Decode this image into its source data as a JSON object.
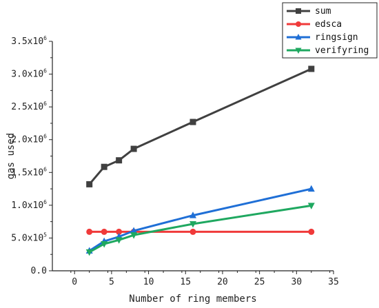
{
  "chart_data": {
    "type": "line",
    "title": "",
    "xlabel": "Number of ring members",
    "ylabel": "gas used",
    "xlim": [
      -3,
      35
    ],
    "ylim": [
      0,
      3500000
    ],
    "x_ticks": [
      {
        "value": 0,
        "label": "0"
      },
      {
        "value": 5,
        "label": "5"
      },
      {
        "value": 10,
        "label": "10"
      },
      {
        "value": 15,
        "label": "15"
      },
      {
        "value": 20,
        "label": "20"
      },
      {
        "value": 25,
        "label": "25"
      },
      {
        "value": 30,
        "label": "30"
      },
      {
        "value": 35,
        "label": "35"
      }
    ],
    "y_ticks": [
      {
        "value": 0,
        "mantissa": "0.0",
        "exp": ""
      },
      {
        "value": 500000,
        "mantissa": "5.0x10",
        "exp": "5"
      },
      {
        "value": 1000000,
        "mantissa": "1.0x10",
        "exp": "6"
      },
      {
        "value": 1500000,
        "mantissa": "1.5x10",
        "exp": "6"
      },
      {
        "value": 2000000,
        "mantissa": "2.0x10",
        "exp": "6"
      },
      {
        "value": 2500000,
        "mantissa": "2.5x10",
        "exp": "6"
      },
      {
        "value": 3000000,
        "mantissa": "3.0x10",
        "exp": "6"
      },
      {
        "value": 3500000,
        "mantissa": "3.5x10",
        "exp": "6"
      }
    ],
    "grid": false,
    "legend_position": "top-right",
    "series": [
      {
        "name": "sum",
        "color": "#404040",
        "marker": "square",
        "x": [
          2,
          4,
          6,
          8,
          16,
          32
        ],
        "y": [
          1320000,
          1585000,
          1685000,
          1860000,
          2270000,
          3080000
        ]
      },
      {
        "name": "edsca",
        "color": "#f03a3a",
        "marker": "circle",
        "x": [
          2,
          4,
          6,
          8,
          16,
          32
        ],
        "y": [
          595000,
          595000,
          595000,
          595000,
          595000,
          595000
        ]
      },
      {
        "name": "ringsign",
        "color": "#1f6fd6",
        "marker": "triangle-up",
        "x": [
          2,
          4,
          6,
          8,
          16,
          32
        ],
        "y": [
          305000,
          450000,
          520000,
          610000,
          845000,
          1250000
        ]
      },
      {
        "name": "verifyring",
        "color": "#1fa860",
        "marker": "triangle-down",
        "x": [
          2,
          4,
          6,
          8,
          16,
          32
        ],
        "y": [
          285000,
          410000,
          470000,
          545000,
          715000,
          995000
        ]
      }
    ]
  }
}
